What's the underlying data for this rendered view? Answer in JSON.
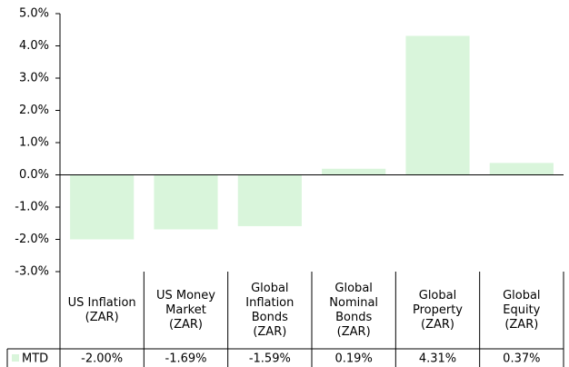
{
  "chart_data": {
    "type": "bar",
    "categories": [
      "US Inflation (ZAR)",
      "US Money Market (ZAR)",
      "Global Inflation Bonds (ZAR)",
      "Global Nominal Bonds (ZAR)",
      "Global Property (ZAR)",
      "Global Equity (ZAR)"
    ],
    "series": [
      {
        "name": "MTD",
        "color": "#d9f5db",
        "values": [
          -2.0,
          -1.69,
          -1.59,
          0.19,
          4.31,
          0.37
        ],
        "value_labels": [
          "-2.00%",
          "-1.69%",
          "-1.59%",
          "0.19%",
          "4.31%",
          "0.37%"
        ]
      }
    ],
    "ylim": [
      -3,
      5
    ],
    "yticks": [
      {
        "value": -3,
        "label": "-3.0%"
      },
      {
        "value": -2,
        "label": "-2.0%"
      },
      {
        "value": -1,
        "label": "-1.0%"
      },
      {
        "value": 0,
        "label": "0.0%"
      },
      {
        "value": 1,
        "label": "1.0%"
      },
      {
        "value": 2,
        "label": "2.0%"
      },
      {
        "value": 3,
        "label": "3.0%"
      },
      {
        "value": 4,
        "label": "4.0%"
      },
      {
        "value": 5,
        "label": "5.0%"
      }
    ],
    "grid": false
  }
}
